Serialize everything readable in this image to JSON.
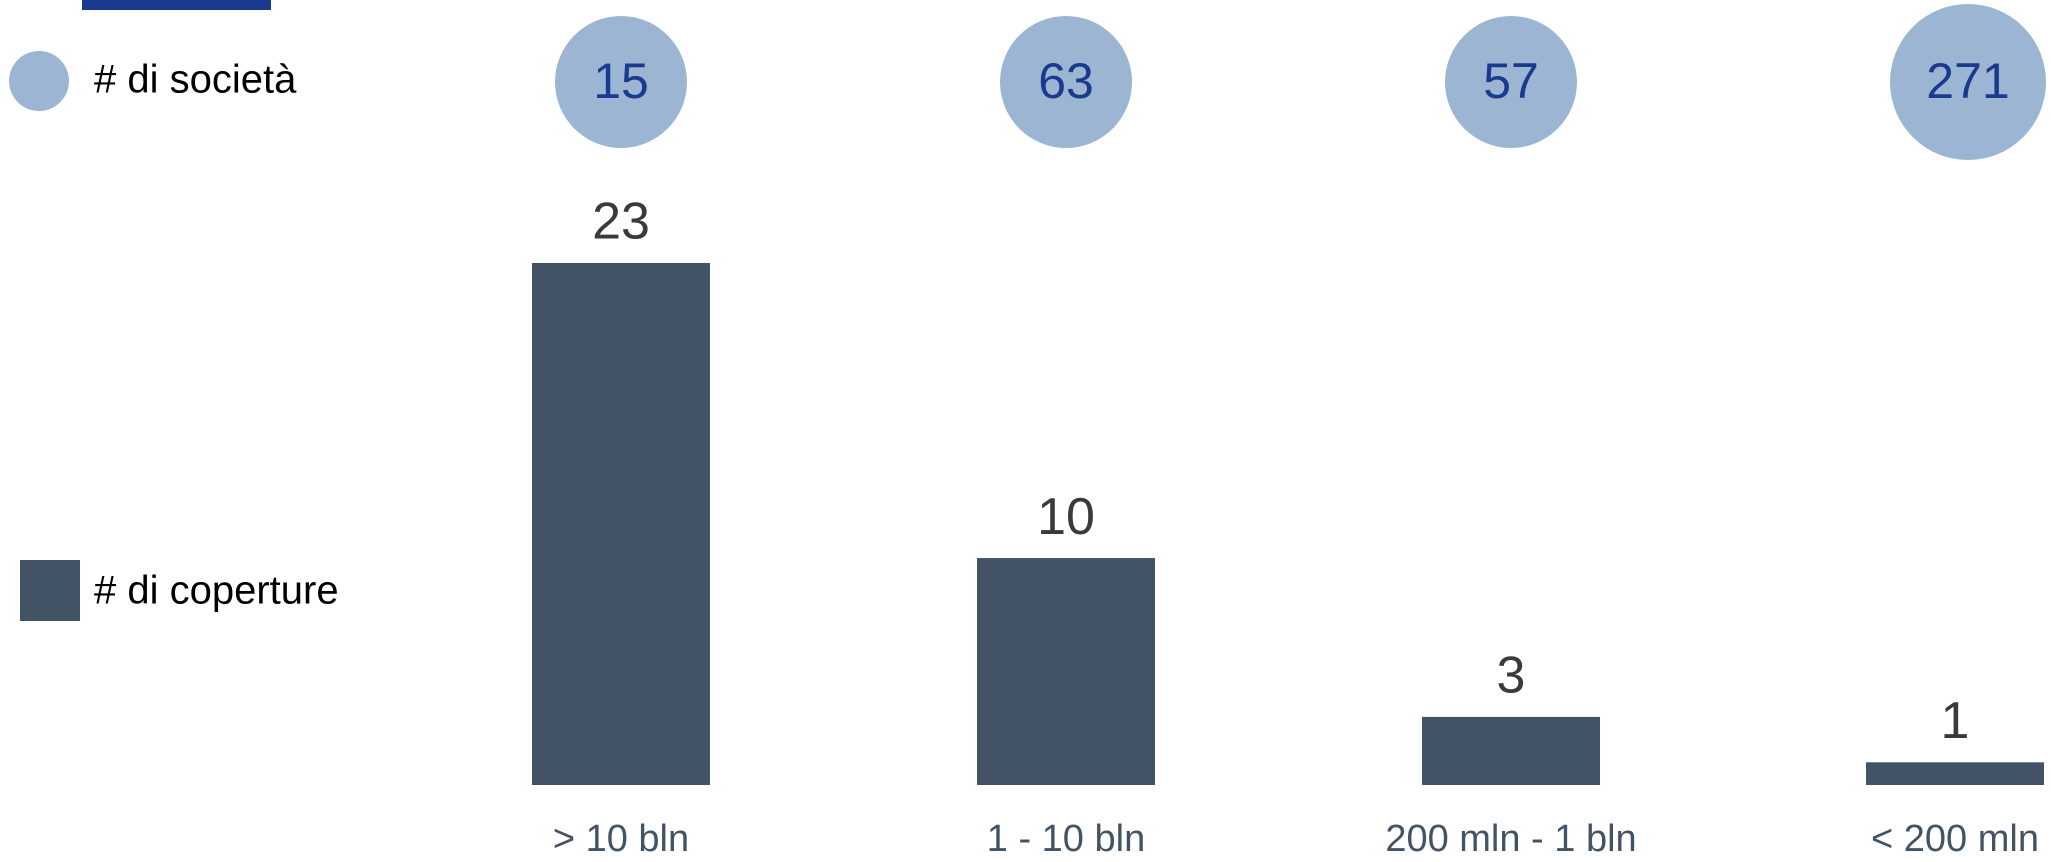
{
  "chart_data": {
    "type": "bar",
    "categories": [
      "> 10 bln",
      "1 - 10 bln",
      "200 mln - 1 bln",
      "< 200 mln"
    ],
    "series": [
      {
        "name": "# di coperture",
        "color": "#435366",
        "values": [
          23,
          10,
          3,
          1
        ]
      },
      {
        "name": "# di società",
        "color": "#9bb5d3",
        "text_color": "#1a3a8f",
        "values": [
          15,
          63,
          57,
          271
        ]
      }
    ]
  }
}
